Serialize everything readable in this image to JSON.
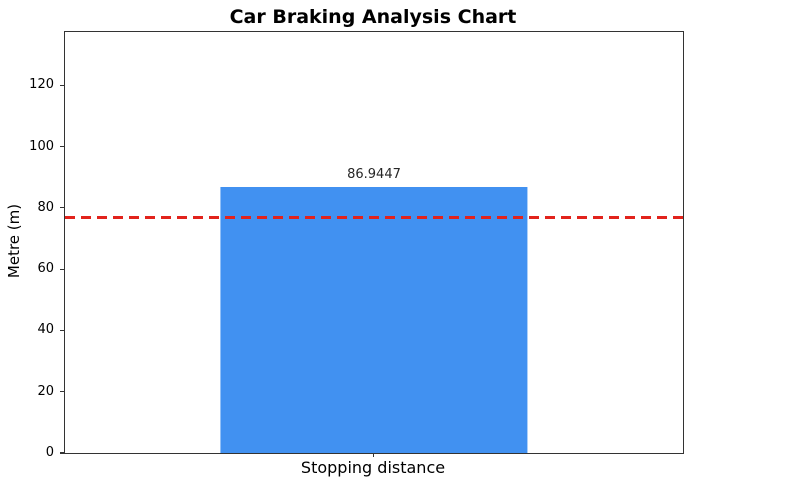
{
  "chart_data": {
    "type": "bar",
    "title": "Car Braking Analysis Chart",
    "categories": [
      "Stopping distance"
    ],
    "values": [
      86.9447
    ],
    "bar_labels": [
      "86.9447"
    ],
    "xlabel": "",
    "ylabel": "Metre (m)",
    "yticks": [
      0,
      20,
      40,
      60,
      80,
      100,
      120
    ],
    "ylim": [
      0,
      137.4
    ],
    "grid": false,
    "legend": "none",
    "bar_color": "#4191F1",
    "bar_width_fraction": 0.497,
    "reference_line": {
      "value": 77,
      "color": "#E2231C",
      "style": "dashed"
    },
    "axis_color": "#333333",
    "background_color": "#FFFFFF"
  }
}
